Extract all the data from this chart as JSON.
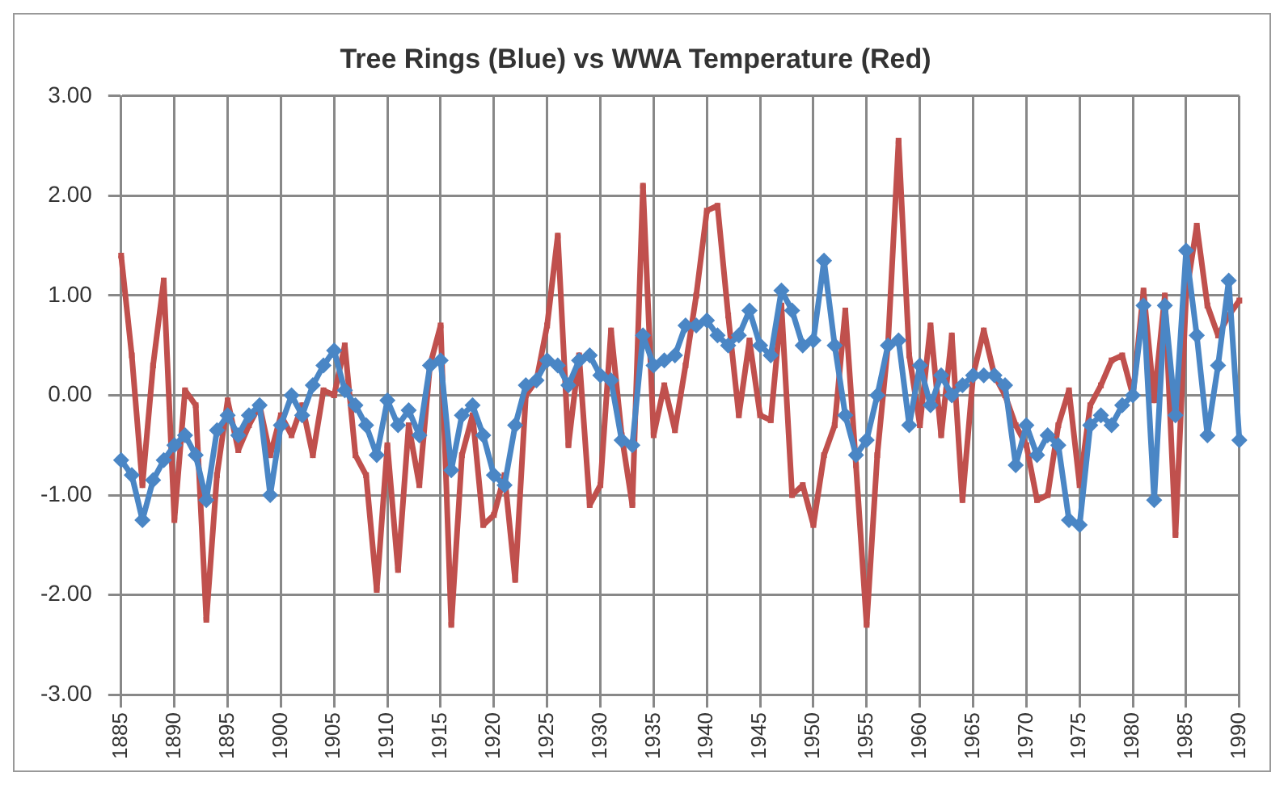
{
  "chart_data": {
    "type": "line",
    "title": "Tree Rings (Blue) vs WWA Temperature (Red)",
    "categories": [
      "1885",
      null,
      null,
      null,
      null,
      "1890",
      null,
      null,
      null,
      null,
      "1895",
      null,
      null,
      null,
      null,
      "1900",
      null,
      null,
      null,
      null,
      "1905",
      null,
      null,
      null,
      null,
      "1910",
      null,
      null,
      null,
      null,
      "1915",
      null,
      null,
      null,
      null,
      "1920",
      null,
      null,
      null,
      null,
      "1925",
      null,
      null,
      null,
      null,
      "1930",
      null,
      null,
      null,
      null,
      "1935",
      null,
      null,
      null,
      null,
      "1940",
      null,
      null,
      null,
      null,
      "1945",
      null,
      null,
      null,
      null,
      "1950",
      null,
      null,
      null,
      null,
      "1955",
      null,
      null,
      null,
      null,
      "1960",
      null,
      null,
      null,
      null,
      "1965",
      null,
      null,
      null,
      null,
      "1970",
      null,
      null,
      null,
      null,
      "1975",
      null,
      null,
      null,
      null,
      "1980",
      null,
      null,
      null,
      null,
      "1985",
      null,
      null,
      null,
      null,
      "1990"
    ],
    "series": [
      {
        "color": "#c0504d",
        "marker": "square",
        "values": [
          1.4,
          0.4,
          -0.9,
          0.3,
          1.15,
          -1.25,
          0.05,
          -0.1,
          -2.25,
          -0.8,
          -0.05,
          -0.55,
          -0.3,
          -0.1,
          -0.6,
          -0.2,
          -0.4,
          -0.1,
          -0.6,
          0.05,
          0.0,
          0.5,
          -0.6,
          -0.8,
          -1.95,
          -0.5,
          -1.75,
          -0.3,
          -0.9,
          0.3,
          0.7,
          -2.3,
          -0.6,
          -0.2,
          -1.3,
          -1.2,
          -0.8,
          -1.85,
          0.0,
          0.15,
          0.7,
          1.6,
          -0.5,
          0.4,
          -1.1,
          -0.9,
          0.65,
          -0.4,
          -1.1,
          2.1,
          -0.4,
          0.1,
          -0.35,
          0.3,
          1.0,
          1.85,
          1.9,
          0.8,
          -0.2,
          0.55,
          -0.2,
          -0.25,
          0.9,
          -1.0,
          -0.9,
          -1.3,
          -0.6,
          -0.3,
          0.85,
          -0.7,
          -2.3,
          -0.6,
          0.5,
          2.55,
          0.4,
          -0.3,
          0.7,
          -0.4,
          0.6,
          -1.05,
          0.2,
          0.65,
          0.2,
          0.0,
          -0.3,
          -0.5,
          -1.05,
          -1.0,
          -0.3,
          0.05,
          -0.9,
          -0.1,
          0.1,
          0.35,
          0.4,
          0.0,
          1.05,
          -0.05,
          1.0,
          -1.4,
          1.0,
          1.7,
          0.9,
          0.6,
          0.8,
          0.95
        ]
      },
      {
        "color": "#4a86c5",
        "marker": "diamond",
        "values": [
          -0.65,
          -0.8,
          -1.25,
          -0.85,
          -0.65,
          -0.5,
          -0.4,
          -0.6,
          -1.05,
          -0.35,
          -0.2,
          -0.4,
          -0.2,
          -0.1,
          -1.0,
          -0.3,
          0.0,
          -0.2,
          0.1,
          0.3,
          0.45,
          0.05,
          -0.1,
          -0.3,
          -0.6,
          -0.05,
          -0.3,
          -0.15,
          -0.4,
          0.3,
          0.35,
          -0.75,
          -0.2,
          -0.1,
          -0.4,
          -0.8,
          -0.9,
          -0.3,
          0.1,
          0.15,
          0.35,
          0.3,
          0.1,
          0.35,
          0.4,
          0.2,
          0.15,
          -0.45,
          -0.5,
          0.6,
          0.3,
          0.35,
          0.4,
          0.7,
          0.7,
          0.75,
          0.6,
          0.5,
          0.6,
          0.85,
          0.5,
          0.4,
          1.05,
          0.85,
          0.5,
          0.55,
          1.35,
          0.5,
          -0.2,
          -0.6,
          -0.45,
          0.0,
          0.5,
          0.55,
          -0.3,
          0.3,
          -0.1,
          0.2,
          0.0,
          0.1,
          0.2,
          0.2,
          0.2,
          0.1,
          -0.7,
          -0.3,
          -0.6,
          -0.4,
          -0.5,
          -1.25,
          -1.3,
          -0.3,
          -0.2,
          -0.3,
          -0.1,
          0.0,
          0.9,
          -1.05,
          0.9,
          -0.2,
          1.45,
          0.6,
          -0.4,
          0.3,
          1.15,
          -0.45
        ]
      }
    ],
    "ylim": [
      -3,
      3
    ],
    "yticks": [
      {
        "value": -3,
        "label": "-3.00"
      },
      {
        "value": -2,
        "label": "-2.00"
      },
      {
        "value": -1,
        "label": "-1.00"
      },
      {
        "value": 0,
        "label": "0.00"
      },
      {
        "value": 1,
        "label": "1.00"
      },
      {
        "value": 2,
        "label": "2.00"
      },
      {
        "value": 3,
        "label": "3.00"
      }
    ],
    "grid": true,
    "legend": false
  }
}
